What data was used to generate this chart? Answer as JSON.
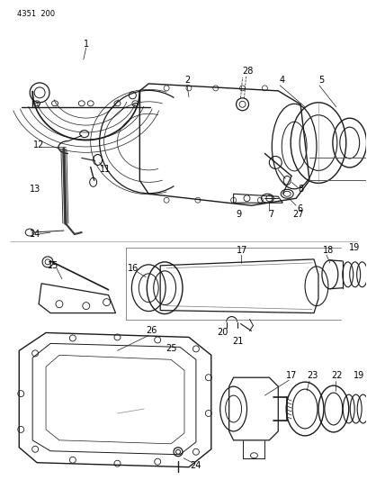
{
  "title": "4351  200",
  "bg_color": "#ffffff",
  "lc": "#1a1a1a",
  "fig_width": 4.08,
  "fig_height": 5.33,
  "dpi": 100
}
